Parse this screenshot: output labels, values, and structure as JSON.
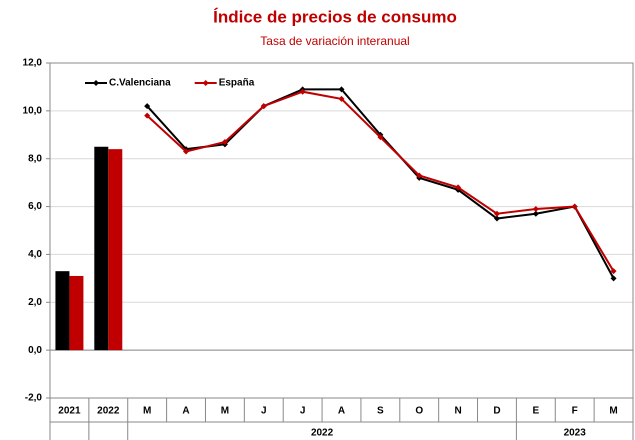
{
  "chart_data": {
    "type": "bar-line",
    "title": "Índice de precios de consumo",
    "subtitle": "Tasa de variación interanual",
    "categories": [
      "2021",
      "2022",
      "M",
      "A",
      "M",
      "J",
      "J",
      "A",
      "S",
      "O",
      "N",
      "D",
      "E",
      "F",
      "M"
    ],
    "groups": [
      {
        "label": "2022",
        "first": 2,
        "last": 11
      },
      {
        "label": "2023",
        "first": 12,
        "last": 14
      }
    ],
    "series": [
      {
        "name": "C.Valenciana",
        "color": "#000000",
        "bar_values": [
          3.3,
          8.5,
          null,
          null,
          null,
          null,
          null,
          null,
          null,
          null,
          null,
          null,
          null,
          null,
          null
        ],
        "values": [
          null,
          null,
          10.2,
          8.4,
          8.6,
          10.2,
          10.9,
          10.9,
          9.0,
          7.2,
          6.7,
          5.5,
          5.7,
          6.0,
          3.0
        ]
      },
      {
        "name": "España",
        "color": "#c00000",
        "bar_values": [
          3.1,
          8.4,
          null,
          null,
          null,
          null,
          null,
          null,
          null,
          null,
          null,
          null,
          null,
          null,
          null
        ],
        "values": [
          null,
          null,
          9.8,
          8.3,
          8.7,
          10.2,
          10.8,
          10.5,
          8.9,
          7.3,
          6.8,
          5.7,
          5.9,
          6.0,
          3.3
        ]
      }
    ],
    "ylim": [
      -2,
      12
    ],
    "yticks": [
      {
        "value": -2,
        "label": "-2,0"
      },
      {
        "value": 0,
        "label": "0,0"
      },
      {
        "value": 2,
        "label": "2,0"
      },
      {
        "value": 4,
        "label": "4,0"
      },
      {
        "value": 6,
        "label": "6,0"
      },
      {
        "value": 8,
        "label": "8,0"
      },
      {
        "value": 10,
        "label": "10,0"
      },
      {
        "value": 12,
        "label": "12,0"
      }
    ],
    "grid": true,
    "legend": "top-left"
  }
}
